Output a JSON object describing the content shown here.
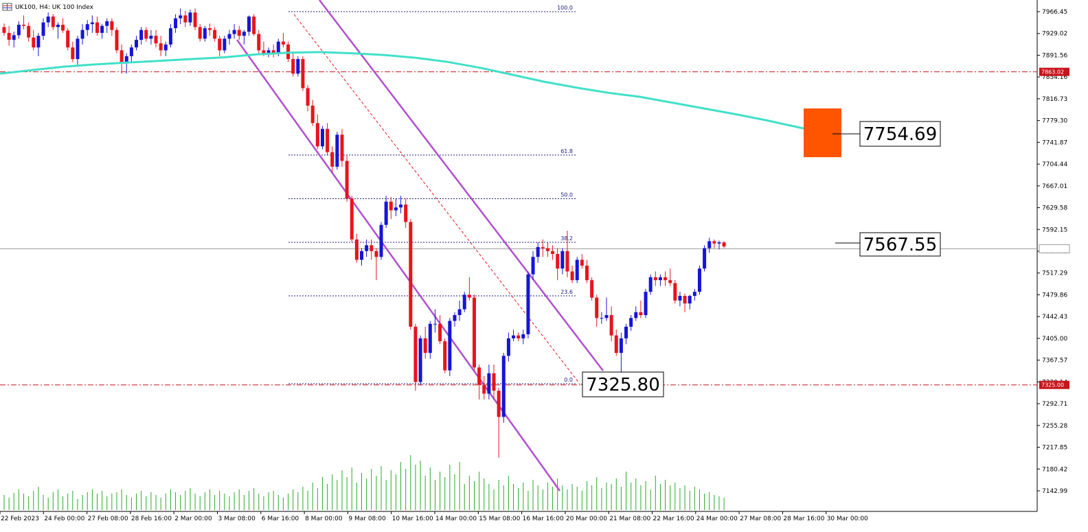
{
  "header": {
    "symbol_title": "UK100, H4:  UK 100 Index",
    "icon": "symbol-grid-icon"
  },
  "colors": {
    "bull": "#1515d8",
    "bear": "#e8141c",
    "ma": "#40e0c8",
    "channel": "#b04fd0",
    "fib": "#1a1a80",
    "level": "#c8141c",
    "current": "#9a9a9a",
    "volume": "#2aa82a",
    "target_box": "#ff5500"
  },
  "chart_data": {
    "type": "candlestick",
    "symbol": "UK100",
    "timeframe": "H4",
    "y_ticks": [
      "7966.45",
      "7929.02",
      "7891.56",
      "7854.16",
      "7816.73",
      "7779.30",
      "7741.87",
      "7704.44",
      "7667.01",
      "7629.58",
      "7592.15",
      "7554.72",
      "7517.29",
      "7479.86",
      "7442.43",
      "7405.00",
      "7367.57",
      "7330.14",
      "7292.71",
      "7255.28",
      "7217.85",
      "7180.42",
      "7142.99"
    ],
    "x_ticks": [
      "22 Feb 2023",
      "24 Feb 00:00",
      "27 Feb 08:00",
      "28 Feb 16:00",
      "2 Mar 00:00",
      "3 Mar 08:00",
      "6 Mar 16:00",
      "8 Mar 00:00",
      "9 Mar 08:00",
      "10 Mar 16:00",
      "14 Mar 00:00",
      "15 Mar 08:00",
      "16 Mar 16:00",
      "20 Mar 00:00",
      "21 Mar 08:00",
      "22 Mar 16:00",
      "24 Mar 00:00",
      "27 Mar 08:00",
      "28 Mar 16:00",
      "30 Mar 00:00"
    ],
    "candles": [
      [
        7940,
        7946,
        7925,
        7930
      ],
      [
        7930,
        7942,
        7908,
        7918
      ],
      [
        7918,
        7932,
        7905,
        7926
      ],
      [
        7926,
        7950,
        7920,
        7944
      ],
      [
        7944,
        7960,
        7936,
        7942
      ],
      [
        7942,
        7948,
        7915,
        7922
      ],
      [
        7922,
        7935,
        7900,
        7905
      ],
      [
        7905,
        7930,
        7890,
        7925
      ],
      [
        7925,
        7955,
        7918,
        7948
      ],
      [
        7948,
        7965,
        7940,
        7958
      ],
      [
        7958,
        7962,
        7935,
        7940
      ],
      [
        7940,
        7948,
        7920,
        7944
      ],
      [
        7944,
        7955,
        7930,
        7934
      ],
      [
        7934,
        7938,
        7900,
        7905
      ],
      [
        7905,
        7915,
        7880,
        7885
      ],
      [
        7885,
        7925,
        7875,
        7920
      ],
      [
        7920,
        7945,
        7910,
        7935
      ],
      [
        7935,
        7952,
        7925,
        7945
      ],
      [
        7945,
        7960,
        7930,
        7948
      ],
      [
        7948,
        7958,
        7925,
        7930
      ],
      [
        7930,
        7945,
        7920,
        7942
      ],
      [
        7942,
        7955,
        7930,
        7950
      ],
      [
        7950,
        7955,
        7925,
        7935
      ],
      [
        7935,
        7940,
        7895,
        7900
      ],
      [
        7900,
        7910,
        7860,
        7880
      ],
      [
        7880,
        7895,
        7860,
        7890
      ],
      [
        7890,
        7910,
        7880,
        7905
      ],
      [
        7905,
        7925,
        7900,
        7918
      ],
      [
        7918,
        7940,
        7910,
        7935
      ],
      [
        7935,
        7940,
        7915,
        7920
      ],
      [
        7920,
        7935,
        7910,
        7925
      ],
      [
        7925,
        7935,
        7905,
        7912
      ],
      [
        7912,
        7925,
        7890,
        7900
      ],
      [
        7900,
        7915,
        7890,
        7910
      ],
      [
        7910,
        7945,
        7905,
        7938
      ],
      [
        7938,
        7962,
        7930,
        7955
      ],
      [
        7955,
        7972,
        7945,
        7960
      ],
      [
        7960,
        7968,
        7940,
        7948
      ],
      [
        7948,
        7970,
        7942,
        7965
      ],
      [
        7965,
        7972,
        7935,
        7940
      ],
      [
        7940,
        7945,
        7915,
        7920
      ],
      [
        7920,
        7942,
        7915,
        7938
      ],
      [
        7938,
        7946,
        7925,
        7935
      ],
      [
        7935,
        7940,
        7915,
        7920
      ],
      [
        7920,
        7925,
        7890,
        7900
      ],
      [
        7900,
        7925,
        7895,
        7920
      ],
      [
        7920,
        7935,
        7910,
        7928
      ],
      [
        7928,
        7945,
        7920,
        7935
      ],
      [
        7935,
        7942,
        7918,
        7925
      ],
      [
        7925,
        7935,
        7910,
        7932
      ],
      [
        7932,
        7960,
        7925,
        7958
      ],
      [
        7958,
        7962,
        7925,
        7928
      ],
      [
        7928,
        7935,
        7895,
        7900
      ],
      [
        7900,
        7915,
        7890,
        7895
      ],
      [
        7895,
        7905,
        7888,
        7900
      ],
      [
        7900,
        7910,
        7888,
        7896
      ],
      [
        7896,
        7920,
        7890,
        7915
      ],
      [
        7915,
        7930,
        7905,
        7910
      ],
      [
        7910,
        7915,
        7880,
        7885
      ],
      [
        7885,
        7895,
        7855,
        7860
      ],
      [
        7860,
        7890,
        7855,
        7885
      ],
      [
        7885,
        7890,
        7830,
        7835
      ],
      [
        7835,
        7840,
        7795,
        7805
      ],
      [
        7805,
        7815,
        7770,
        7775
      ],
      [
        7775,
        7790,
        7730,
        7735
      ],
      [
        7735,
        7770,
        7730,
        7765
      ],
      [
        7765,
        7775,
        7720,
        7725
      ],
      [
        7725,
        7735,
        7690,
        7700
      ],
      [
        7700,
        7760,
        7695,
        7755
      ],
      [
        7755,
        7765,
        7700,
        7710
      ],
      [
        7710,
        7720,
        7640,
        7645
      ],
      [
        7645,
        7650,
        7570,
        7575
      ],
      [
        7575,
        7585,
        7535,
        7540
      ],
      [
        7540,
        7560,
        7530,
        7555
      ],
      [
        7555,
        7575,
        7545,
        7565
      ],
      [
        7565,
        7575,
        7540,
        7555
      ],
      [
        7555,
        7560,
        7505,
        7545
      ],
      [
        7545,
        7605,
        7540,
        7600
      ],
      [
        7600,
        7650,
        7595,
        7640
      ],
      [
        7640,
        7648,
        7610,
        7625
      ],
      [
        7625,
        7645,
        7615,
        7630
      ],
      [
        7630,
        7650,
        7620,
        7635
      ],
      [
        7635,
        7645,
        7595,
        7605
      ],
      [
        7605,
        7610,
        7420,
        7425
      ],
      [
        7425,
        7430,
        7315,
        7330
      ],
      [
        7330,
        7410,
        7325,
        7405
      ],
      [
        7405,
        7425,
        7370,
        7380
      ],
      [
        7380,
        7435,
        7370,
        7430
      ],
      [
        7430,
        7455,
        7415,
        7430
      ],
      [
        7430,
        7445,
        7395,
        7400
      ],
      [
        7400,
        7405,
        7345,
        7350
      ],
      [
        7350,
        7440,
        7340,
        7435
      ],
      [
        7435,
        7450,
        7425,
        7445
      ],
      [
        7445,
        7470,
        7435,
        7455
      ],
      [
        7455,
        7485,
        7450,
        7480
      ],
      [
        7480,
        7510,
        7470,
        7475
      ],
      [
        7475,
        7480,
        7350,
        7355
      ],
      [
        7355,
        7360,
        7300,
        7325
      ],
      [
        7325,
        7340,
        7300,
        7310
      ],
      [
        7310,
        7360,
        7300,
        7345
      ],
      [
        7345,
        7360,
        7300,
        7315
      ],
      [
        7315,
        7320,
        7200,
        7270
      ],
      [
        7270,
        7380,
        7260,
        7375
      ],
      [
        7375,
        7415,
        7365,
        7405
      ],
      [
        7405,
        7420,
        7400,
        7410
      ],
      [
        7410,
        7415,
        7400,
        7405
      ],
      [
        7405,
        7420,
        7395,
        7412
      ],
      [
        7412,
        7520,
        7405,
        7515
      ],
      [
        7515,
        7555,
        7505,
        7545
      ],
      [
        7545,
        7570,
        7535,
        7562
      ],
      [
        7562,
        7575,
        7545,
        7560
      ],
      [
        7560,
        7570,
        7545,
        7555
      ],
      [
        7555,
        7565,
        7540,
        7550
      ],
      [
        7550,
        7560,
        7505,
        7525
      ],
      [
        7525,
        7560,
        7515,
        7555
      ],
      [
        7555,
        7590,
        7510,
        7520
      ],
      [
        7520,
        7530,
        7500,
        7505
      ],
      [
        7505,
        7545,
        7500,
        7540
      ],
      [
        7540,
        7550,
        7525,
        7530
      ],
      [
        7530,
        7540,
        7500,
        7505
      ],
      [
        7505,
        7510,
        7470,
        7475
      ],
      [
        7475,
        7480,
        7425,
        7440
      ],
      [
        7440,
        7450,
        7430,
        7440
      ],
      [
        7440,
        7475,
        7435,
        7445
      ],
      [
        7445,
        7460,
        7400,
        7410
      ],
      [
        7410,
        7420,
        7375,
        7380
      ],
      [
        7380,
        7415,
        7330,
        7405
      ],
      [
        7405,
        7430,
        7395,
        7425
      ],
      [
        7425,
        7445,
        7418,
        7440
      ],
      [
        7440,
        7460,
        7435,
        7450
      ],
      [
        7450,
        7470,
        7440,
        7445
      ],
      [
        7445,
        7490,
        7440,
        7485
      ],
      [
        7485,
        7515,
        7480,
        7510
      ],
      [
        7510,
        7520,
        7495,
        7505
      ],
      [
        7505,
        7515,
        7495,
        7510
      ],
      [
        7510,
        7520,
        7495,
        7505
      ],
      [
        7505,
        7525,
        7495,
        7500
      ],
      [
        7500,
        7505,
        7465,
        7470
      ],
      [
        7470,
        7485,
        7460,
        7478
      ],
      [
        7478,
        7482,
        7450,
        7465
      ],
      [
        7465,
        7480,
        7455,
        7478
      ],
      [
        7478,
        7490,
        7470,
        7485
      ],
      [
        7485,
        7530,
        7480,
        7525
      ],
      [
        7525,
        7565,
        7520,
        7560
      ],
      [
        7560,
        7578,
        7552,
        7572
      ],
      [
        7572,
        7575,
        7560,
        7568
      ],
      [
        7568,
        7573,
        7558,
        7570
      ],
      [
        7570,
        7572,
        7560,
        7563
      ]
    ],
    "ma_line": [
      7860,
      7866,
      7872,
      7876,
      7879,
      7882,
      7885,
      7888,
      7893,
      7896,
      7897,
      7895,
      7892,
      7887,
      7880,
      7870,
      7858,
      7846,
      7836,
      7827,
      7820,
      7810,
      7800,
      7790,
      7779,
      7767,
      7756
    ],
    "volume": [
      22,
      18,
      25,
      30,
      24,
      20,
      28,
      34,
      22,
      18,
      26,
      30,
      20,
      24,
      28,
      16,
      22,
      26,
      30,
      24,
      28,
      20,
      24,
      26,
      30,
      22,
      18,
      24,
      28,
      20,
      26,
      22,
      18,
      24,
      30,
      26,
      22,
      28,
      32,
      24,
      20,
      26,
      30,
      22,
      28,
      24,
      20,
      26,
      30,
      22,
      28,
      32,
      24,
      20,
      26,
      28,
      22,
      18,
      24,
      30,
      26,
      34,
      28,
      40,
      32,
      48,
      38,
      52,
      44,
      58,
      48,
      62,
      40,
      54,
      46,
      60,
      50,
      64,
      44,
      58,
      52,
      70,
      60,
      80,
      66,
      72,
      50,
      62,
      44,
      56,
      48,
      66,
      52,
      70,
      38,
      50,
      42,
      56,
      46,
      38,
      30,
      44,
      36,
      50,
      38,
      32,
      40,
      28,
      44,
      36,
      30,
      40,
      34,
      46,
      36,
      30,
      38,
      34,
      28,
      42,
      36,
      48,
      32,
      40,
      38,
      46,
      34,
      56,
      40,
      46,
      36,
      42,
      30,
      50,
      38,
      44,
      36,
      40,
      32,
      36,
      28,
      34,
      30,
      24,
      26,
      22,
      20,
      18
    ],
    "fib_levels": [
      {
        "label": "100.0",
        "price": 7966.5
      },
      {
        "label": "61.8",
        "price": 7720
      },
      {
        "label": "50.0",
        "price": 7645
      },
      {
        "label": "38.2",
        "price": 7570
      },
      {
        "label": "23.6",
        "price": 7478
      },
      {
        "label": "0.0",
        "price": 7327
      }
    ],
    "hlines": [
      {
        "price": 7863.02,
        "tag": "7863.02"
      },
      {
        "price": 7325.0,
        "tag": "7325.00"
      }
    ],
    "current_price": {
      "price": 7559.0,
      "tag": "7559.00"
    },
    "annotations": [
      {
        "text": "7754.69"
      },
      {
        "text": "7567.55"
      },
      {
        "text": "7325.80"
      }
    ],
    "ylim": [
      7118,
      7990
    ]
  }
}
